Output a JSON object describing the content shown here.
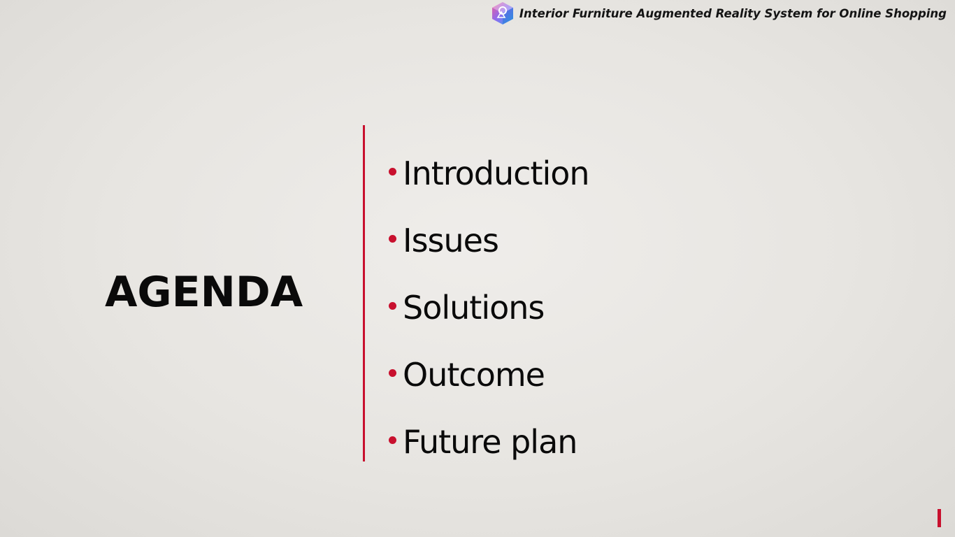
{
  "header": {
    "logo_icon": "ar-logo-icon",
    "title": "Interior Furniture Augmented Reality System for Online Shopping"
  },
  "slide": {
    "title": "AGENDA",
    "items": [
      {
        "label": "Introduction"
      },
      {
        "label": "Issues"
      },
      {
        "label": "Solutions"
      },
      {
        "label": "Outcome"
      },
      {
        "label": "Future plan"
      }
    ]
  },
  "colors": {
    "accent": "#c8102e",
    "text": "#0a0a0a",
    "background": "#e8e6e2"
  }
}
